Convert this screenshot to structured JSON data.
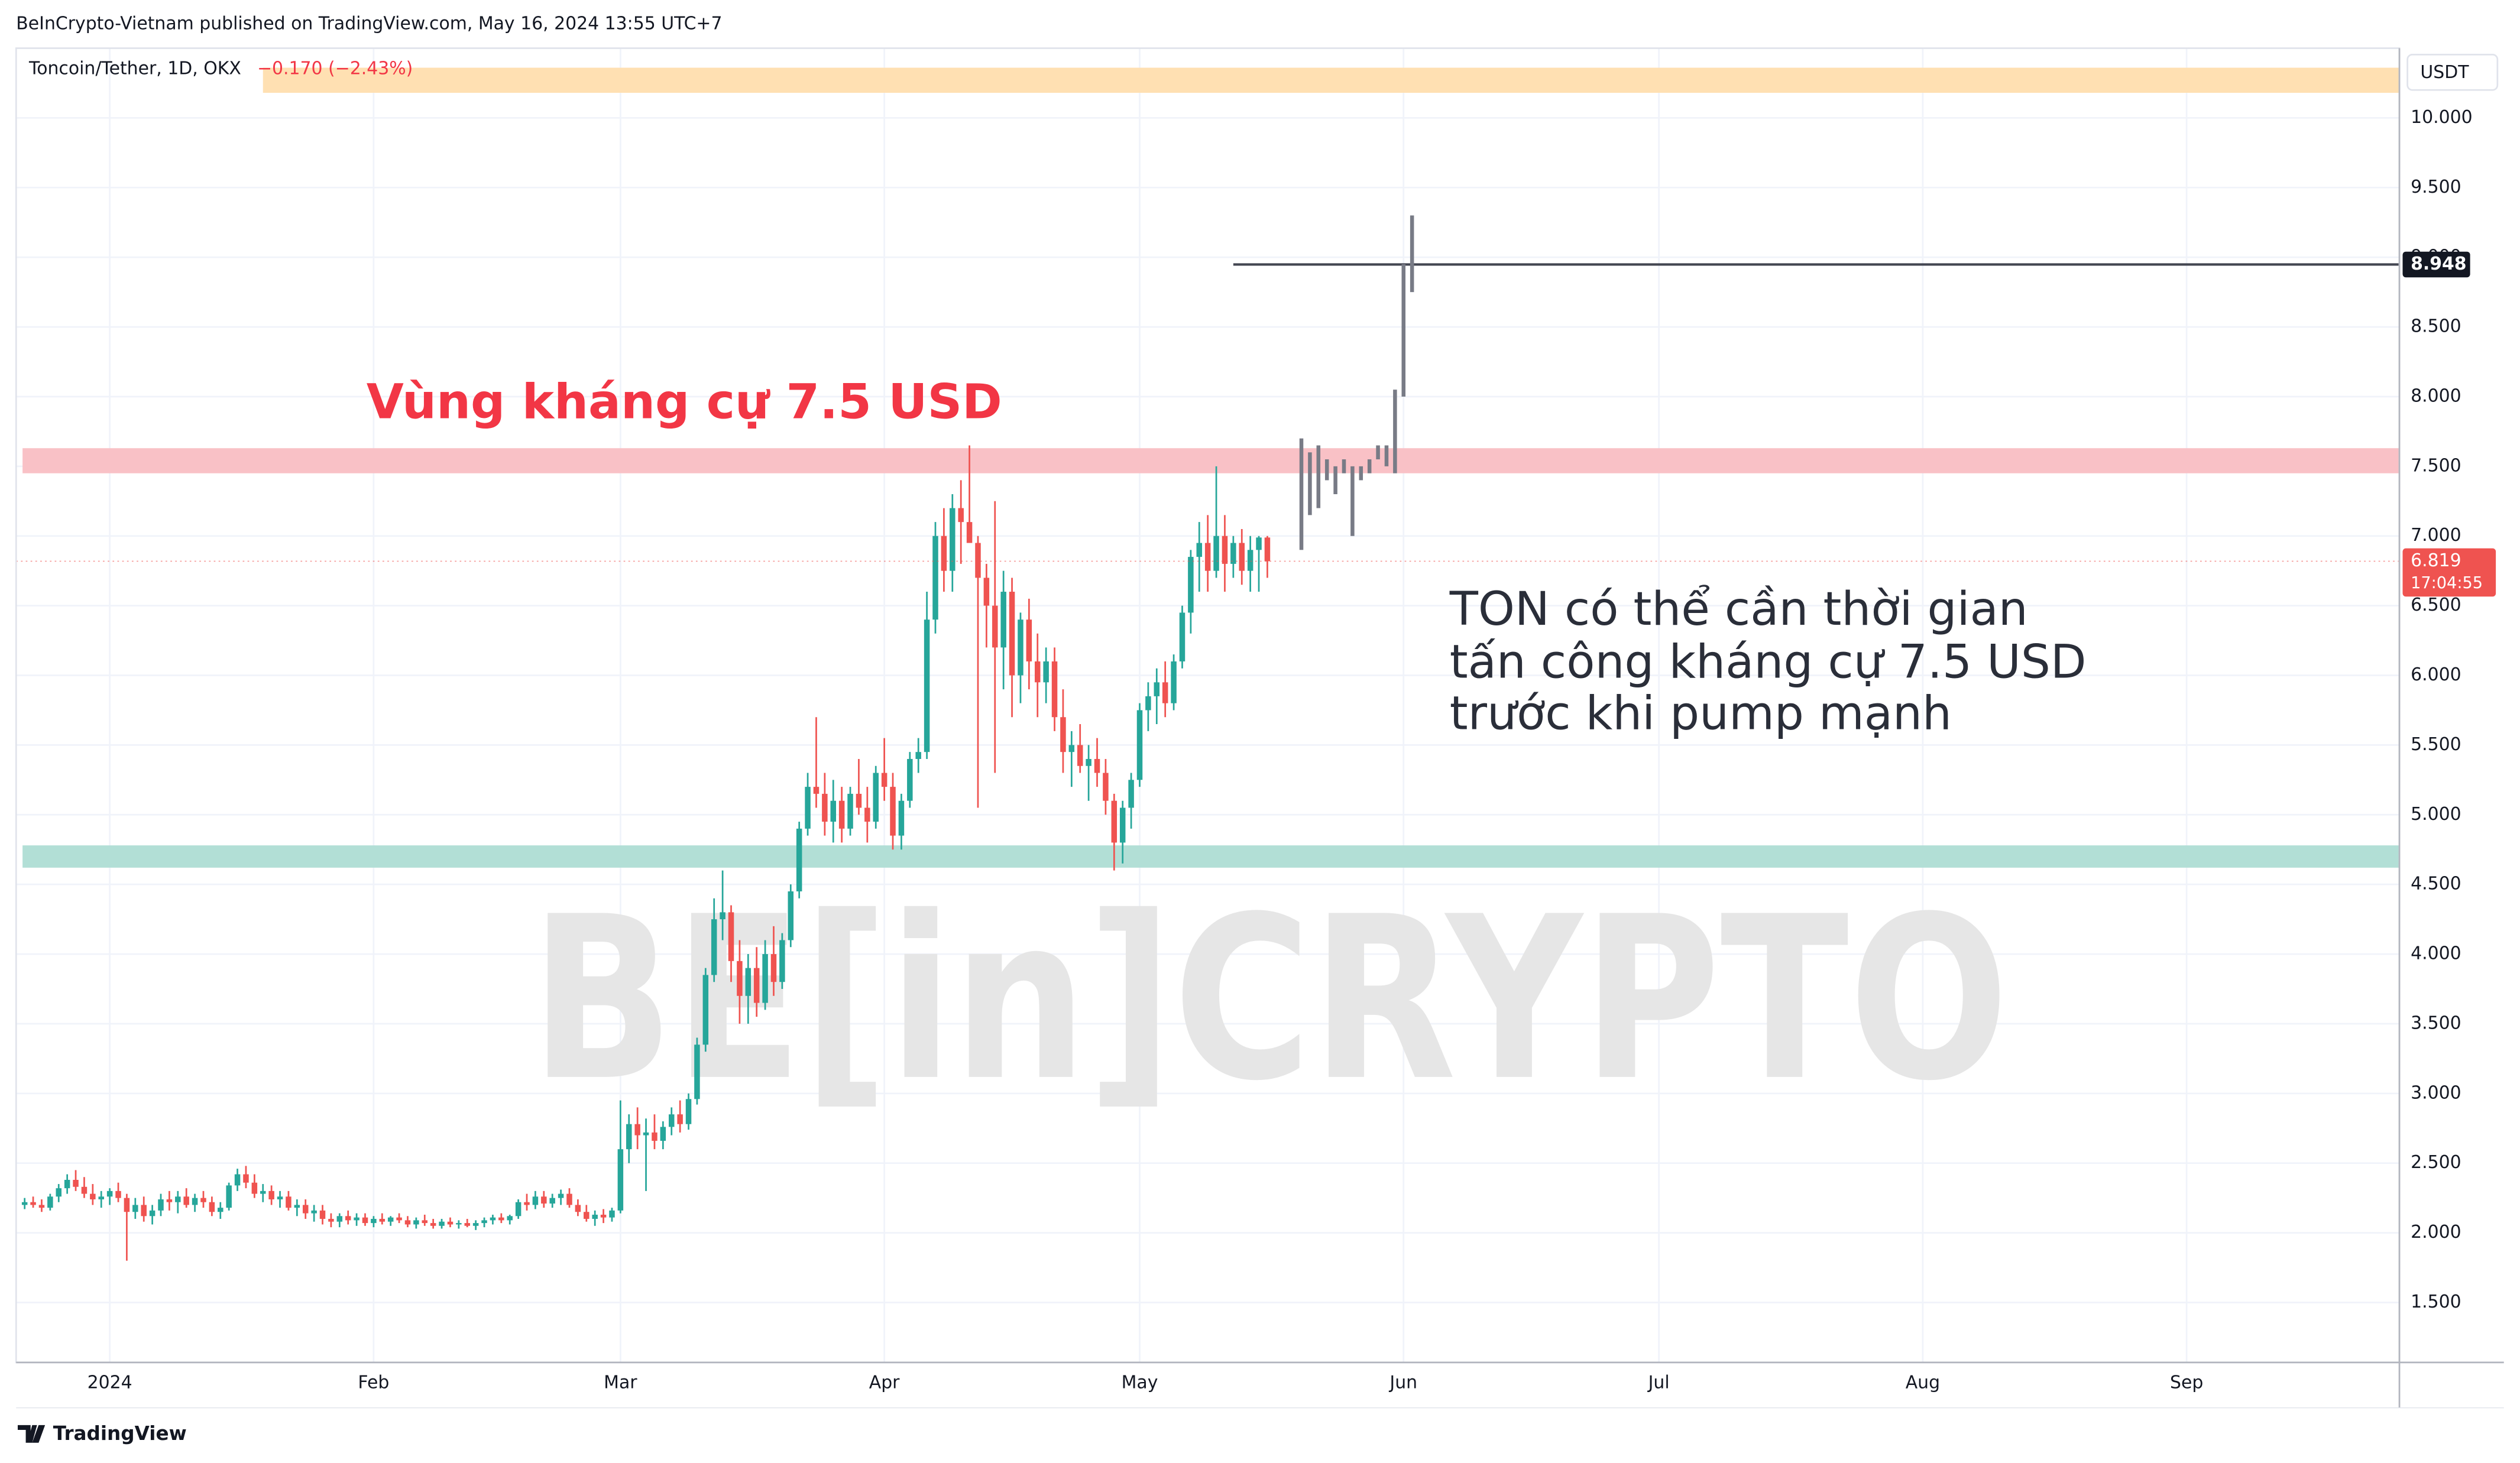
{
  "header": "BeInCrypto-Vietnam published on TradingView.com, May 16, 2024 13:55 UTC+7",
  "footer": "TradingView",
  "chart_data": {
    "type": "candlestick",
    "symbol": "Toncoin/Tether, 1D, OKX",
    "change": "−0.170 (−2.43%)",
    "currency": "USDT",
    "countdown": "17:04:55",
    "watermark": "BE[in]CRYPTO",
    "annotations": [
      {
        "text": "Vùng kháng cự 7.5 USD",
        "color": "#f23645"
      },
      {
        "text": "TON có thể cần thời gian",
        "color": "#2a2e39"
      },
      {
        "text": "tấn công kháng cự 7.5 USD",
        "color": "#2a2e39"
      },
      {
        "text": "trước khi pump mạnh",
        "color": "#2a2e39"
      }
    ],
    "up_color": "#26a69a",
    "down_color": "#ef5350",
    "xlim": [
      "2023-12-21",
      "2024-09-26"
    ],
    "ylim": [
      1.07,
      10.5
    ],
    "xticks": [
      {
        "value": "2024-01-01",
        "label": "2024"
      },
      {
        "value": "2024-02-01",
        "label": "Feb"
      },
      {
        "value": "2024-03-01",
        "label": "Mar"
      },
      {
        "value": "2024-04-01",
        "label": "Apr"
      },
      {
        "value": "2024-05-01",
        "label": "May"
      },
      {
        "value": "2024-06-01",
        "label": "Jun"
      },
      {
        "value": "2024-07-01",
        "label": "Jul"
      },
      {
        "value": "2024-08-01",
        "label": "Aug"
      },
      {
        "value": "2024-09-01",
        "label": "Sep"
      }
    ],
    "yticks": [
      {
        "value": 1.5,
        "label": "1.500"
      },
      {
        "value": 2,
        "label": "2.000"
      },
      {
        "value": 2.5,
        "label": "2.500"
      },
      {
        "value": 3,
        "label": "3.000"
      },
      {
        "value": 3.5,
        "label": "3.500"
      },
      {
        "value": 4,
        "label": "4.000"
      },
      {
        "value": 4.5,
        "label": "4.500"
      },
      {
        "value": 5,
        "label": "5.000"
      },
      {
        "value": 5.5,
        "label": "5.500"
      },
      {
        "value": 6,
        "label": "6.000"
      },
      {
        "value": 6.5,
        "label": "6.500"
      },
      {
        "value": 7,
        "label": "7.000"
      },
      {
        "value": 7.5,
        "label": "7.500"
      },
      {
        "value": 8,
        "label": "8.000"
      },
      {
        "value": 8.5,
        "label": "8.500"
      },
      {
        "value": 9,
        "label": "9.000"
      },
      {
        "value": 9.5,
        "label": "9.500"
      },
      {
        "value": 10,
        "label": "10.000"
      }
    ],
    "zones": [
      {
        "from": 10.18,
        "to": 10.36,
        "start": "2024-01-19",
        "color": "#ffe0b2"
      },
      {
        "from": 7.45,
        "to": 7.63,
        "color": "#f9c1c6"
      },
      {
        "from": 4.62,
        "to": 4.78,
        "color": "#b2dfd6"
      }
    ],
    "hline": {
      "value": 8.948,
      "label": "8.948",
      "start": "2024-05-12",
      "color": "#434651"
    },
    "x": [
      "2023-12-22",
      "2023-12-23",
      "2023-12-24",
      "2023-12-25",
      "2023-12-26",
      "2023-12-27",
      "2023-12-28",
      "2023-12-29",
      "2023-12-30",
      "2023-12-31",
      "2024-01-01",
      "2024-01-02",
      "2024-01-03",
      "2024-01-04",
      "2024-01-05",
      "2024-01-06",
      "2024-01-07",
      "2024-01-08",
      "2024-01-09",
      "2024-01-10",
      "2024-01-11",
      "2024-01-12",
      "2024-01-13",
      "2024-01-14",
      "2024-01-15",
      "2024-01-16",
      "2024-01-17",
      "2024-01-18",
      "2024-01-19",
      "2024-01-20",
      "2024-01-21",
      "2024-01-22",
      "2024-01-23",
      "2024-01-24",
      "2024-01-25",
      "2024-01-26",
      "2024-01-27",
      "2024-01-28",
      "2024-01-29",
      "2024-01-30",
      "2024-01-31",
      "2024-02-01",
      "2024-02-02",
      "2024-02-03",
      "2024-02-04",
      "2024-02-05",
      "2024-02-06",
      "2024-02-07",
      "2024-02-08",
      "2024-02-09",
      "2024-02-10",
      "2024-02-11",
      "2024-02-12",
      "2024-02-13",
      "2024-02-14",
      "2024-02-15",
      "2024-02-16",
      "2024-02-17",
      "2024-02-18",
      "2024-02-19",
      "2024-02-20",
      "2024-02-21",
      "2024-02-22",
      "2024-02-23",
      "2024-02-24",
      "2024-02-25",
      "2024-02-26",
      "2024-02-27",
      "2024-02-28",
      "2024-02-29",
      "2024-03-01",
      "2024-03-02",
      "2024-03-03",
      "2024-03-04",
      "2024-03-05",
      "2024-03-06",
      "2024-03-07",
      "2024-03-08",
      "2024-03-09",
      "2024-03-10",
      "2024-03-11",
      "2024-03-12",
      "2024-03-13",
      "2024-03-14",
      "2024-03-15",
      "2024-03-16",
      "2024-03-17",
      "2024-03-18",
      "2024-03-19",
      "2024-03-20",
      "2024-03-21",
      "2024-03-22",
      "2024-03-23",
      "2024-03-24",
      "2024-03-25",
      "2024-03-26",
      "2024-03-27",
      "2024-03-28",
      "2024-03-29",
      "2024-03-30",
      "2024-03-31",
      "2024-04-01",
      "2024-04-02",
      "2024-04-03",
      "2024-04-04",
      "2024-04-05",
      "2024-04-06",
      "2024-04-07",
      "2024-04-08",
      "2024-04-09",
      "2024-04-10",
      "2024-04-11",
      "2024-04-12",
      "2024-04-13",
      "2024-04-14",
      "2024-04-15",
      "2024-04-16",
      "2024-04-17",
      "2024-04-18",
      "2024-04-19",
      "2024-04-20",
      "2024-04-21",
      "2024-04-22",
      "2024-04-23",
      "2024-04-24",
      "2024-04-25",
      "2024-04-26",
      "2024-04-27",
      "2024-04-28",
      "2024-04-29",
      "2024-04-30",
      "2024-05-01",
      "2024-05-02",
      "2024-05-03",
      "2024-05-04",
      "2024-05-05",
      "2024-05-06",
      "2024-05-07",
      "2024-05-08",
      "2024-05-09",
      "2024-05-10",
      "2024-05-11",
      "2024-05-12",
      "2024-05-13",
      "2024-05-14",
      "2024-05-15",
      "2024-05-16"
    ],
    "ohlc": [
      [
        2.2,
        2.25,
        2.17,
        2.22
      ],
      [
        2.22,
        2.26,
        2.18,
        2.2
      ],
      [
        2.2,
        2.24,
        2.15,
        2.18
      ],
      [
        2.18,
        2.28,
        2.16,
        2.26
      ],
      [
        2.26,
        2.35,
        2.22,
        2.32
      ],
      [
        2.32,
        2.42,
        2.28,
        2.38
      ],
      [
        2.38,
        2.45,
        2.3,
        2.33
      ],
      [
        2.33,
        2.4,
        2.25,
        2.28
      ],
      [
        2.28,
        2.35,
        2.2,
        2.24
      ],
      [
        2.24,
        2.3,
        2.18,
        2.26
      ],
      [
        2.26,
        2.32,
        2.2,
        2.3
      ],
      [
        2.3,
        2.36,
        2.22,
        2.25
      ],
      [
        2.25,
        2.28,
        1.8,
        2.15
      ],
      [
        2.15,
        2.25,
        2.1,
        2.2
      ],
      [
        2.2,
        2.26,
        2.08,
        2.12
      ],
      [
        2.12,
        2.2,
        2.06,
        2.16
      ],
      [
        2.16,
        2.28,
        2.12,
        2.24
      ],
      [
        2.24,
        2.3,
        2.16,
        2.22
      ],
      [
        2.22,
        2.3,
        2.14,
        2.26
      ],
      [
        2.26,
        2.32,
        2.18,
        2.2
      ],
      [
        2.2,
        2.28,
        2.15,
        2.25
      ],
      [
        2.25,
        2.3,
        2.18,
        2.22
      ],
      [
        2.22,
        2.26,
        2.12,
        2.15
      ],
      [
        2.15,
        2.22,
        2.1,
        2.18
      ],
      [
        2.18,
        2.36,
        2.16,
        2.34
      ],
      [
        2.34,
        2.46,
        2.3,
        2.42
      ],
      [
        2.42,
        2.48,
        2.32,
        2.36
      ],
      [
        2.36,
        2.42,
        2.25,
        2.28
      ],
      [
        2.28,
        2.35,
        2.22,
        2.3
      ],
      [
        2.3,
        2.34,
        2.2,
        2.24
      ],
      [
        2.24,
        2.3,
        2.18,
        2.26
      ],
      [
        2.26,
        2.3,
        2.16,
        2.18
      ],
      [
        2.18,
        2.24,
        2.12,
        2.2
      ],
      [
        2.2,
        2.24,
        2.1,
        2.14
      ],
      [
        2.14,
        2.2,
        2.08,
        2.16
      ],
      [
        2.16,
        2.2,
        2.06,
        2.1
      ],
      [
        2.1,
        2.14,
        2.04,
        2.08
      ],
      [
        2.08,
        2.14,
        2.04,
        2.12
      ],
      [
        2.12,
        2.16,
        2.06,
        2.09
      ],
      [
        2.09,
        2.14,
        2.05,
        2.11
      ],
      [
        2.11,
        2.14,
        2.05,
        2.07
      ],
      [
        2.07,
        2.12,
        2.04,
        2.1
      ],
      [
        2.1,
        2.14,
        2.06,
        2.08
      ],
      [
        2.08,
        2.12,
        2.05,
        2.11
      ],
      [
        2.11,
        2.14,
        2.07,
        2.09
      ],
      [
        2.09,
        2.12,
        2.04,
        2.06
      ],
      [
        2.06,
        2.11,
        2.03,
        2.09
      ],
      [
        2.09,
        2.13,
        2.05,
        2.07
      ],
      [
        2.07,
        2.1,
        2.03,
        2.05
      ],
      [
        2.05,
        2.1,
        2.03,
        2.08
      ],
      [
        2.08,
        2.11,
        2.04,
        2.06
      ],
      [
        2.06,
        2.09,
        2.03,
        2.07
      ],
      [
        2.07,
        2.1,
        2.04,
        2.05
      ],
      [
        2.05,
        2.09,
        2.02,
        2.07
      ],
      [
        2.07,
        2.11,
        2.04,
        2.09
      ],
      [
        2.09,
        2.13,
        2.06,
        2.11
      ],
      [
        2.11,
        2.14,
        2.07,
        2.09
      ],
      [
        2.09,
        2.13,
        2.06,
        2.12
      ],
      [
        2.12,
        2.24,
        2.1,
        2.22
      ],
      [
        2.22,
        2.28,
        2.16,
        2.2
      ],
      [
        2.2,
        2.3,
        2.17,
        2.26
      ],
      [
        2.26,
        2.3,
        2.18,
        2.21
      ],
      [
        2.21,
        2.28,
        2.18,
        2.25
      ],
      [
        2.25,
        2.31,
        2.2,
        2.28
      ],
      [
        2.28,
        2.32,
        2.18,
        2.2
      ],
      [
        2.2,
        2.24,
        2.12,
        2.15
      ],
      [
        2.15,
        2.2,
        2.08,
        2.1
      ],
      [
        2.1,
        2.16,
        2.05,
        2.13
      ],
      [
        2.13,
        2.17,
        2.07,
        2.11
      ],
      [
        2.11,
        2.18,
        2.08,
        2.16
      ],
      [
        2.16,
        2.95,
        2.14,
        2.6
      ],
      [
        2.6,
        2.85,
        2.5,
        2.78
      ],
      [
        2.78,
        2.9,
        2.6,
        2.7
      ],
      [
        2.7,
        2.82,
        2.3,
        2.72
      ],
      [
        2.72,
        2.85,
        2.6,
        2.66
      ],
      [
        2.66,
        2.8,
        2.6,
        2.76
      ],
      [
        2.76,
        2.9,
        2.7,
        2.85
      ],
      [
        2.85,
        2.95,
        2.72,
        2.78
      ],
      [
        2.78,
        3.0,
        2.74,
        2.96
      ],
      [
        2.96,
        3.4,
        2.92,
        3.35
      ],
      [
        3.35,
        3.9,
        3.3,
        3.85
      ],
      [
        3.85,
        4.4,
        3.8,
        4.25
      ],
      [
        4.25,
        4.6,
        4.1,
        4.3
      ],
      [
        4.3,
        4.35,
        3.8,
        3.95
      ],
      [
        3.95,
        4.1,
        3.5,
        3.7
      ],
      [
        3.7,
        4.0,
        3.5,
        3.9
      ],
      [
        3.9,
        4.05,
        3.55,
        3.65
      ],
      [
        3.65,
        4.1,
        3.6,
        4.0
      ],
      [
        4.0,
        4.2,
        3.7,
        3.8
      ],
      [
        3.8,
        4.15,
        3.75,
        4.1
      ],
      [
        4.1,
        4.5,
        4.05,
        4.45
      ],
      [
        4.45,
        4.95,
        4.4,
        4.9
      ],
      [
        4.9,
        5.3,
        4.85,
        5.2
      ],
      [
        5.2,
        5.7,
        5.05,
        5.15
      ],
      [
        5.15,
        5.3,
        4.85,
        4.95
      ],
      [
        4.95,
        5.25,
        4.8,
        5.1
      ],
      [
        5.1,
        5.2,
        4.8,
        4.9
      ],
      [
        4.9,
        5.2,
        4.85,
        5.15
      ],
      [
        5.15,
        5.4,
        5.0,
        5.05
      ],
      [
        5.05,
        5.2,
        4.8,
        4.95
      ],
      [
        4.95,
        5.35,
        4.9,
        5.3
      ],
      [
        5.3,
        5.55,
        5.1,
        5.2
      ],
      [
        5.2,
        5.3,
        4.75,
        4.85
      ],
      [
        4.85,
        5.15,
        4.75,
        5.1
      ],
      [
        5.1,
        5.45,
        5.05,
        5.4
      ],
      [
        5.4,
        5.55,
        5.3,
        5.45
      ],
      [
        5.45,
        6.6,
        5.4,
        6.4
      ],
      [
        6.4,
        7.1,
        6.3,
        7.0
      ],
      [
        7.0,
        7.2,
        6.6,
        6.75
      ],
      [
        6.75,
        7.3,
        6.6,
        7.2
      ],
      [
        7.2,
        7.4,
        6.8,
        7.1
      ],
      [
        7.1,
        7.65,
        6.95,
        6.95
      ],
      [
        6.95,
        7.0,
        5.05,
        6.7
      ],
      [
        6.7,
        6.8,
        6.2,
        6.5
      ],
      [
        6.5,
        7.25,
        5.3,
        6.2
      ],
      [
        6.2,
        6.75,
        5.9,
        6.6
      ],
      [
        6.6,
        6.7,
        5.7,
        6.0
      ],
      [
        6.0,
        6.45,
        5.8,
        6.4
      ],
      [
        6.4,
        6.55,
        5.9,
        6.1
      ],
      [
        6.1,
        6.3,
        5.7,
        5.95
      ],
      [
        5.95,
        6.2,
        5.8,
        6.1
      ],
      [
        6.1,
        6.2,
        5.6,
        5.7
      ],
      [
        5.7,
        5.9,
        5.3,
        5.45
      ],
      [
        5.45,
        5.6,
        5.2,
        5.5
      ],
      [
        5.5,
        5.65,
        5.3,
        5.35
      ],
      [
        5.35,
        5.5,
        5.1,
        5.4
      ],
      [
        5.4,
        5.55,
        5.2,
        5.3
      ],
      [
        5.3,
        5.4,
        5.0,
        5.1
      ],
      [
        5.1,
        5.15,
        4.6,
        4.8
      ],
      [
        4.8,
        5.1,
        4.65,
        5.05
      ],
      [
        5.05,
        5.3,
        4.9,
        5.25
      ],
      [
        5.25,
        5.8,
        5.2,
        5.75
      ],
      [
        5.75,
        5.95,
        5.6,
        5.85
      ],
      [
        5.85,
        6.05,
        5.65,
        5.95
      ],
      [
        5.95,
        6.1,
        5.7,
        5.8
      ],
      [
        5.8,
        6.15,
        5.75,
        6.1
      ],
      [
        6.1,
        6.5,
        6.05,
        6.45
      ],
      [
        6.45,
        6.9,
        6.3,
        6.85
      ],
      [
        6.85,
        7.1,
        6.6,
        6.95
      ],
      [
        6.95,
        7.15,
        6.6,
        6.75
      ],
      [
        6.75,
        7.5,
        6.7,
        7.0
      ],
      [
        7.0,
        7.15,
        6.6,
        6.8
      ],
      [
        6.8,
        7.0,
        6.7,
        6.95
      ],
      [
        6.95,
        7.05,
        6.65,
        6.75
      ],
      [
        6.75,
        7.0,
        6.6,
        6.9
      ],
      [
        6.9,
        7.0,
        6.6,
        6.989
      ],
      [
        6.989,
        7.0,
        6.7,
        6.819
      ]
    ],
    "projection": {
      "color": "#787b86",
      "x": [
        "2024-05-20",
        "2024-05-21",
        "2024-05-22",
        "2024-05-23",
        "2024-05-24",
        "2024-05-25",
        "2024-05-26",
        "2024-05-27",
        "2024-05-28",
        "2024-05-29",
        "2024-05-30",
        "2024-05-31",
        "2024-06-01",
        "2024-06-02"
      ],
      "ranges": [
        [
          6.9,
          7.7
        ],
        [
          7.15,
          7.6
        ],
        [
          7.2,
          7.65
        ],
        [
          7.4,
          7.55
        ],
        [
          7.3,
          7.5
        ],
        [
          7.45,
          7.55
        ],
        [
          7.0,
          7.5
        ],
        [
          7.4,
          7.5
        ],
        [
          7.45,
          7.55
        ],
        [
          7.55,
          7.65
        ],
        [
          7.5,
          7.65
        ],
        [
          7.45,
          8.05
        ],
        [
          8.0,
          8.95
        ],
        [
          8.75,
          9.3
        ]
      ]
    }
  }
}
